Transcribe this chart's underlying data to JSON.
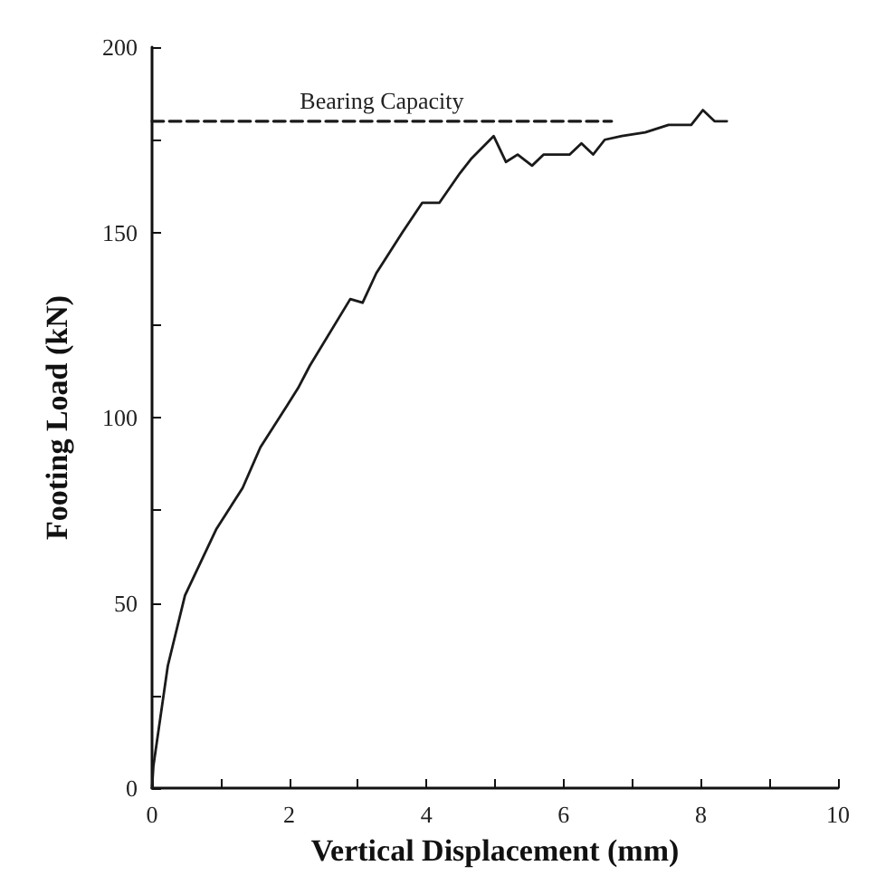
{
  "chart_data": {
    "type": "line",
    "xlabel": "Vertical Displacement (mm)",
    "ylabel": "Footing Load (kN)",
    "xlim": [
      0,
      10
    ],
    "xticks": [
      0,
      {
        "value": 1,
        "label": null
      },
      2,
      {
        "value": 3,
        "label": null
      },
      4,
      {
        "value": 5,
        "label": null
      },
      6,
      {
        "value": 7,
        "label": null
      },
      8,
      {
        "value": 9,
        "label": null
      },
      10
    ],
    "ylim": [
      0,
      200
    ],
    "yticks": [
      0,
      {
        "value": 25,
        "label": null
      },
      50,
      {
        "value": 75,
        "label": null
      },
      100,
      {
        "value": 125,
        "label": null
      },
      150,
      {
        "value": 175,
        "label": null
      },
      200
    ],
    "grid": false,
    "legend": false,
    "marker": "none",
    "series": [
      {
        "color": "#1a1a1a",
        "line_style": "solid",
        "x": [
          0,
          0.02,
          0.23,
          0.48,
          0.94,
          1.32,
          1.58,
          1.96,
          2.13,
          2.3,
          2.89,
          3.07,
          3.27,
          3.65,
          3.94,
          4.19,
          4.49,
          4.66,
          4.98,
          5.16,
          5.33,
          5.54,
          5.71,
          6.09,
          6.26,
          6.43,
          6.6,
          6.85,
          7.19,
          7.53,
          7.86,
          8.03,
          8.2,
          8.38
        ],
        "values": [
          0,
          6,
          33,
          52,
          70,
          81,
          92,
          103,
          108,
          114,
          132,
          131,
          139,
          150,
          158,
          158,
          166,
          170,
          176,
          169,
          171,
          168,
          171,
          171,
          174,
          171,
          175,
          176,
          177,
          179,
          179,
          183,
          180,
          180
        ]
      },
      {
        "name": "Bearing Capacity",
        "color": "#1a1a1a",
        "line_style": "dashed",
        "x": [
          0,
          6.7
        ],
        "values": [
          180,
          180
        ]
      }
    ]
  }
}
